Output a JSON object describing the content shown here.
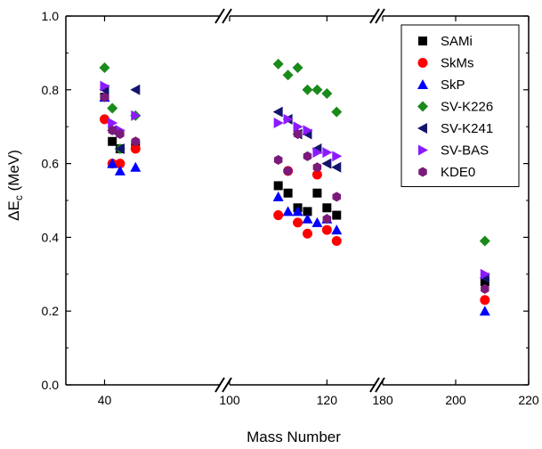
{
  "chart_data": {
    "type": "scatter",
    "xlabel": "Mass Number",
    "ylabel_main": "ΔE",
    "ylabel_sub": "c",
    "ylabel_unit": "(MeV)",
    "ylim": [
      0.0,
      1.0
    ],
    "y_ticks": [
      "0.0",
      "0.2",
      "0.4",
      "0.6",
      "0.8",
      "1.0"
    ],
    "x_broken": true,
    "x_segments": [
      {
        "range": [
          30,
          70
        ],
        "ticks": [
          40
        ],
        "tick_labels": [
          "40"
        ]
      },
      {
        "range": [
          100,
          130
        ],
        "ticks": [
          100,
          120
        ],
        "tick_labels": [
          "100",
          "120"
        ]
      },
      {
        "range": [
          180,
          220
        ],
        "ticks": [
          180,
          200,
          220
        ],
        "tick_labels": [
          "180",
          "200",
          "220"
        ]
      }
    ],
    "grid": false,
    "legend_position": "top-right",
    "series": [
      {
        "name": "SAMi",
        "marker": "square",
        "color": "#000000",
        "points": [
          [
            40,
            0.78
          ],
          [
            42,
            0.66
          ],
          [
            44,
            0.64
          ],
          [
            48,
            0.65
          ],
          [
            110,
            0.54
          ],
          [
            112,
            0.52
          ],
          [
            114,
            0.48
          ],
          [
            116,
            0.47
          ],
          [
            118,
            0.52
          ],
          [
            120,
            0.48
          ],
          [
            122,
            0.46
          ],
          [
            208,
            0.28
          ]
        ]
      },
      {
        "name": "SkMs",
        "marker": "circle",
        "color": "#ff0000",
        "points": [
          [
            40,
            0.72
          ],
          [
            42,
            0.6
          ],
          [
            44,
            0.6
          ],
          [
            48,
            0.64
          ],
          [
            110,
            0.46
          ],
          [
            112,
            0.58
          ],
          [
            114,
            0.44
          ],
          [
            116,
            0.41
          ],
          [
            118,
            0.57
          ],
          [
            120,
            0.42
          ],
          [
            122,
            0.39
          ],
          [
            208,
            0.23
          ]
        ]
      },
      {
        "name": "SkP",
        "marker": "triangle-up",
        "color": "#0000ff",
        "points": [
          [
            40,
            0.78
          ],
          [
            42,
            0.6
          ],
          [
            44,
            0.58
          ],
          [
            48,
            0.59
          ],
          [
            110,
            0.51
          ],
          [
            112,
            0.47
          ],
          [
            114,
            0.47
          ],
          [
            116,
            0.45
          ],
          [
            118,
            0.44
          ],
          [
            120,
            0.45
          ],
          [
            122,
            0.42
          ],
          [
            208,
            0.2
          ]
        ]
      },
      {
        "name": "SV-K226",
        "marker": "diamond",
        "color": "#1a8a1a",
        "points": [
          [
            40,
            0.86
          ],
          [
            42,
            0.75
          ],
          [
            44,
            0.64
          ],
          [
            48,
            0.73
          ],
          [
            110,
            0.87
          ],
          [
            112,
            0.84
          ],
          [
            114,
            0.86
          ],
          [
            116,
            0.8
          ],
          [
            118,
            0.8
          ],
          [
            120,
            0.79
          ],
          [
            122,
            0.74
          ],
          [
            208,
            0.39
          ]
        ]
      },
      {
        "name": "SV-K241",
        "marker": "triangle-left",
        "color": "#14146e",
        "points": [
          [
            40,
            0.8
          ],
          [
            42,
            0.69
          ],
          [
            44,
            0.64
          ],
          [
            48,
            0.8
          ],
          [
            110,
            0.74
          ],
          [
            112,
            0.72
          ],
          [
            114,
            0.68
          ],
          [
            116,
            0.68
          ],
          [
            118,
            0.64
          ],
          [
            120,
            0.6
          ],
          [
            122,
            0.59
          ],
          [
            208,
            0.29
          ]
        ]
      },
      {
        "name": "SV-BAS",
        "marker": "triangle-right",
        "color": "#8c1aff",
        "points": [
          [
            40,
            0.81
          ],
          [
            42,
            0.71
          ],
          [
            44,
            0.69
          ],
          [
            48,
            0.73
          ],
          [
            110,
            0.71
          ],
          [
            112,
            0.72
          ],
          [
            114,
            0.7
          ],
          [
            116,
            0.69
          ],
          [
            118,
            0.63
          ],
          [
            120,
            0.63
          ],
          [
            122,
            0.62
          ],
          [
            208,
            0.3
          ]
        ]
      },
      {
        "name": "KDE0",
        "marker": "hexagon",
        "color": "#7a1a7a",
        "points": [
          [
            40,
            0.78
          ],
          [
            42,
            0.69
          ],
          [
            44,
            0.68
          ],
          [
            48,
            0.66
          ],
          [
            110,
            0.61
          ],
          [
            112,
            0.58
          ],
          [
            114,
            0.68
          ],
          [
            116,
            0.62
          ],
          [
            118,
            0.59
          ],
          [
            120,
            0.45
          ],
          [
            122,
            0.51
          ],
          [
            208,
            0.26
          ]
        ]
      }
    ]
  }
}
